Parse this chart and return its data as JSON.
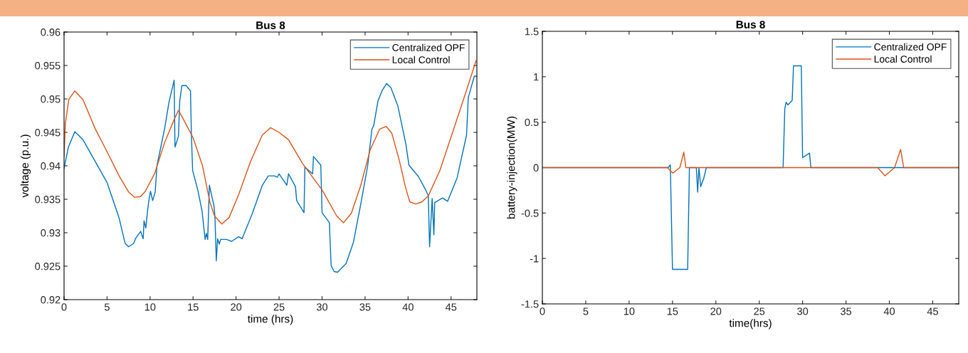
{
  "chart_data": [
    {
      "type": "line",
      "title": "Bus 8",
      "xlabel": "time (hrs)",
      "ylabel": "voltage (p.u.)",
      "xlim": [
        0,
        48
      ],
      "xticks": [
        0,
        5,
        10,
        15,
        20,
        25,
        30,
        35,
        40,
        45
      ],
      "ylim": [
        0.92,
        0.96
      ],
      "yticks": [
        0.92,
        0.925,
        0.93,
        0.935,
        0.94,
        0.945,
        0.95,
        0.955,
        0.96
      ],
      "grid": false,
      "legend": "top right",
      "line_style": "solid",
      "marker": "none",
      "series": [
        {
          "name": "Centralized OPF",
          "color": "#0072bd",
          "x": [
            0,
            0.5,
            1.25,
            2.2,
            3.6,
            5,
            6.4,
            7.1,
            7.5,
            8.1,
            8.3,
            8.9,
            9.2,
            9.3,
            9.5,
            9.8,
            10.05,
            10.3,
            10.6,
            10.8,
            11.7,
            12.2,
            12.8,
            12.9,
            13.3,
            13.45,
            13.7,
            14.2,
            14.7,
            14.8,
            14.95,
            15.55,
            16.05,
            16.4,
            16.55,
            16.7,
            16.9,
            17.45,
            17.55,
            17.7,
            17.85,
            18.05,
            18.2,
            18.9,
            19.45,
            20.3,
            20.7,
            21.9,
            23.05,
            23.75,
            24.45,
            24.8,
            25.0,
            25.9,
            26.1,
            26.9,
            27.05,
            27.9,
            28.0,
            28.9,
            29.0,
            29.85,
            30.0,
            30.85,
            31.05,
            31.4,
            31.8,
            32.1,
            32.8,
            33.65,
            34.5,
            35.3,
            35.8,
            36.0,
            36.5,
            37.0,
            37.5,
            38.0,
            38.8,
            39.75,
            40.1,
            41.2,
            42.05,
            42.35,
            42.5,
            42.8,
            43.0,
            43.1,
            44.0,
            44.6,
            45.7,
            46.8,
            47.0,
            47.7,
            48
          ],
          "values": [
            0.9396,
            0.9428,
            0.9451,
            0.9439,
            0.9407,
            0.9375,
            0.9322,
            0.9284,
            0.9279,
            0.9284,
            0.9291,
            0.9302,
            0.9291,
            0.9318,
            0.9307,
            0.9343,
            0.9362,
            0.9348,
            0.9361,
            0.94,
            0.9456,
            0.9495,
            0.9528,
            0.9428,
            0.9444,
            0.9497,
            0.952,
            0.952,
            0.9512,
            0.9449,
            0.9393,
            0.9364,
            0.9332,
            0.929,
            0.9299,
            0.929,
            0.9371,
            0.9339,
            0.9322,
            0.9258,
            0.9291,
            0.9283,
            0.929,
            0.929,
            0.9287,
            0.9294,
            0.9291,
            0.9329,
            0.9371,
            0.9385,
            0.9385,
            0.9383,
            0.9388,
            0.9371,
            0.9388,
            0.9369,
            0.9348,
            0.933,
            0.9398,
            0.9388,
            0.9414,
            0.9401,
            0.933,
            0.9315,
            0.9251,
            0.9242,
            0.9241,
            0.9245,
            0.9254,
            0.9286,
            0.9343,
            0.94,
            0.9455,
            0.946,
            0.9497,
            0.9513,
            0.9523,
            0.9517,
            0.949,
            0.9432,
            0.9401,
            0.9384,
            0.9364,
            0.9355,
            0.9279,
            0.9351,
            0.9297,
            0.9345,
            0.9352,
            0.9347,
            0.9382,
            0.9446,
            0.9502,
            0.9534,
            0.9534
          ]
        },
        {
          "name": "Local Control",
          "color": "#d95319",
          "x": [
            0,
            0.15,
            0.55,
            1.25,
            2.2,
            3.6,
            5,
            6.4,
            7.5,
            8.2,
            8.9,
            9.45,
            10.55,
            11.7,
            12.8,
            13.3,
            13.9,
            15,
            16.1,
            16.95,
            17.5,
            18.35,
            19.2,
            20.3,
            21.7,
            23.05,
            24,
            25,
            26.1,
            27.75,
            30,
            31.7,
            32.5,
            33.4,
            34.5,
            35.6,
            36.7,
            37.45,
            38.1,
            39,
            39.7,
            40.2,
            40.9,
            41.6,
            42.35,
            43.7,
            45.15,
            46.8,
            47.9
          ],
          "values": [
            0.9414,
            0.9463,
            0.9499,
            0.9512,
            0.9499,
            0.9456,
            0.9421,
            0.9385,
            0.9361,
            0.9353,
            0.9354,
            0.9362,
            0.9389,
            0.9435,
            0.9469,
            0.9483,
            0.9469,
            0.9442,
            0.94,
            0.9346,
            0.9325,
            0.9313,
            0.9323,
            0.9357,
            0.9407,
            0.9446,
            0.9457,
            0.945,
            0.9439,
            0.9403,
            0.9364,
            0.9325,
            0.9315,
            0.9329,
            0.9371,
            0.9424,
            0.9455,
            0.9459,
            0.9449,
            0.9407,
            0.9368,
            0.9346,
            0.9343,
            0.9346,
            0.9355,
            0.9393,
            0.9449,
            0.9513,
            0.9557
          ]
        }
      ]
    },
    {
      "type": "line",
      "title": "Bus 8",
      "xlabel": "time(hrs)",
      "ylabel": "battery-injection(MW)",
      "xlim": [
        0,
        48
      ],
      "xticks": [
        0,
        5,
        10,
        15,
        20,
        25,
        30,
        35,
        40,
        45
      ],
      "ylim": [
        -1.5,
        1.5
      ],
      "yticks": [
        -1.5,
        -1,
        -0.5,
        0,
        0.5,
        1,
        1.5
      ],
      "grid": false,
      "legend": "top right",
      "line_style": "solid",
      "marker": "none",
      "series": [
        {
          "name": "Centralized OPF",
          "color": "#0072bd",
          "x": [
            0,
            14.5,
            14.75,
            15.0,
            16.75,
            16.95,
            17.75,
            17.9,
            18.05,
            18.25,
            18.6,
            18.9,
            27.75,
            27.95,
            28.1,
            28.3,
            28.8,
            28.95,
            29.85,
            30.0,
            30.8,
            30.95,
            48
          ],
          "values": [
            0,
            0,
            0.03,
            -1.12,
            -1.12,
            0,
            0,
            -0.27,
            0,
            -0.21,
            -0.12,
            0,
            0,
            0.65,
            0.72,
            0.69,
            0.74,
            1.12,
            1.12,
            0.11,
            0.16,
            0,
            0
          ]
        },
        {
          "name": "Local Control",
          "color": "#d95319",
          "x": [
            0,
            14.4,
            15.05,
            15.85,
            16.3,
            16.55,
            38.65,
            39.5,
            40.6,
            41.3,
            41.65,
            48
          ],
          "values": [
            0,
            0,
            -0.06,
            0,
            0.17,
            0,
            0,
            -0.09,
            0,
            0.2,
            0,
            0
          ]
        }
      ]
    }
  ]
}
